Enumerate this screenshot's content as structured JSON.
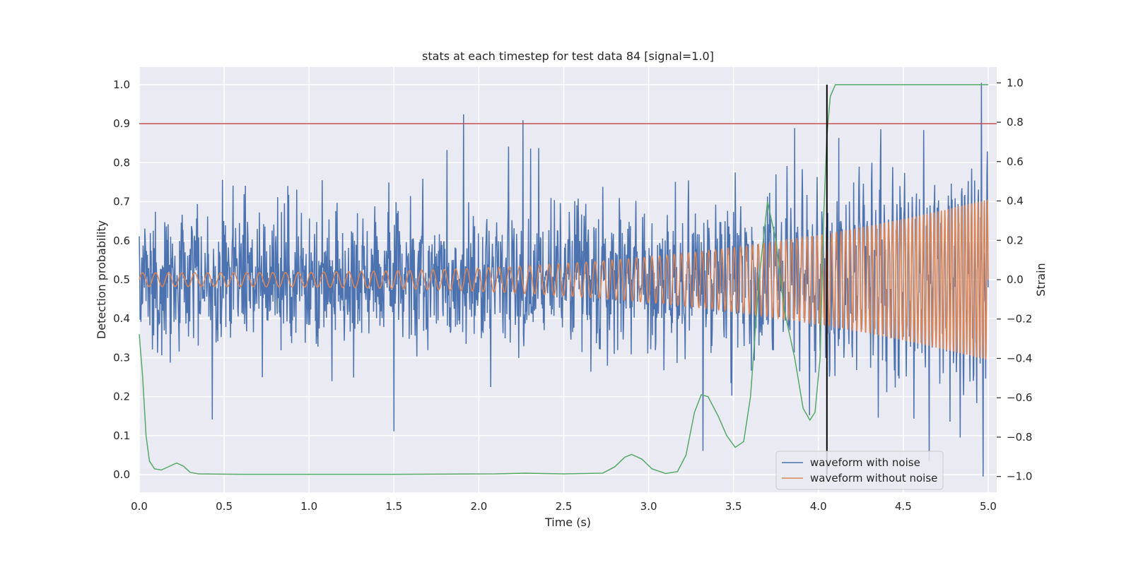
{
  "chart_data": {
    "type": "line",
    "title": "stats at each timestep for test data 84 [signal=1.0]",
    "xlabel": "Time (s)",
    "ylabel_left": "Detection probability",
    "ylabel_right": "Strain",
    "xlim": [
      0.0,
      5.05
    ],
    "ylim_left": [
      -0.045,
      1.045
    ],
    "ylim_right": [
      -1.08,
      1.08
    ],
    "x_ticks": [
      0.0,
      0.5,
      1.0,
      1.5,
      2.0,
      2.5,
      3.0,
      3.5,
      4.0,
      4.5,
      5.0
    ],
    "x_tick_labels": [
      "0.0",
      "0.5",
      "1.0",
      "1.5",
      "2.0",
      "2.5",
      "3.0",
      "3.5",
      "4.0",
      "4.5",
      "5.0"
    ],
    "y_left_ticks": [
      0.0,
      0.1,
      0.2,
      0.3,
      0.4,
      0.5,
      0.6,
      0.7,
      0.8,
      0.9,
      1.0
    ],
    "y_left_tick_labels": [
      "0.0",
      "0.1",
      "0.2",
      "0.3",
      "0.4",
      "0.5",
      "0.6",
      "0.7",
      "0.8",
      "0.9",
      "1.0"
    ],
    "y_right_ticks": [
      -1.0,
      -0.8,
      -0.6,
      -0.4,
      -0.2,
      0.0,
      0.2,
      0.4,
      0.6,
      0.8,
      1.0
    ],
    "y_right_tick_labels": [
      "−1.0",
      "−0.8",
      "−0.6",
      "−0.4",
      "−0.2",
      "0.0",
      "0.2",
      "0.4",
      "0.6",
      "0.8",
      "1.0"
    ],
    "grid": true,
    "legend_position": "lower-right",
    "threshold": {
      "axis": "left",
      "y": 0.9,
      "color": "#c44e52"
    },
    "detection_time": {
      "x": 4.05,
      "color": "#000000"
    },
    "series": [
      {
        "name": "waveform with noise",
        "axis": "right",
        "color": "#4c72b0",
        "kind": "noise",
        "approx_std": 0.17,
        "approx_range": [
          -1.0,
          1.0
        ],
        "notable_points": [
          [
            1.91,
            0.84
          ],
          [
            2.26,
            0.81
          ],
          [
            3.86,
            0.77
          ],
          [
            4.12,
            0.72
          ],
          [
            4.62,
            0.76
          ],
          [
            4.96,
            1.0
          ],
          [
            4.97,
            -1.0
          ],
          [
            0.43,
            -0.71
          ],
          [
            1.5,
            -0.77
          ],
          [
            3.32,
            -0.87
          ]
        ]
      },
      {
        "name": "waveform without noise",
        "axis": "right",
        "color": "#dd8452",
        "kind": "chirp",
        "amplitude_start": 0.035,
        "amplitude_end": 0.41,
        "frequency_start_hz": 13,
        "frequency_end_hz": 55
      },
      {
        "axis": "left",
        "color": "#55a868",
        "kind": "probability",
        "points": [
          [
            0.0,
            0.36
          ],
          [
            0.02,
            0.25
          ],
          [
            0.04,
            0.1
          ],
          [
            0.06,
            0.035
          ],
          [
            0.09,
            0.015
          ],
          [
            0.13,
            0.012
          ],
          [
            0.18,
            0.022
          ],
          [
            0.22,
            0.03
          ],
          [
            0.26,
            0.022
          ],
          [
            0.3,
            0.006
          ],
          [
            0.35,
            0.002
          ],
          [
            0.6,
            0.001
          ],
          [
            1.5,
            0.001
          ],
          [
            2.1,
            0.002
          ],
          [
            2.27,
            0.004
          ],
          [
            2.5,
            0.002
          ],
          [
            2.73,
            0.004
          ],
          [
            2.8,
            0.02
          ],
          [
            2.86,
            0.045
          ],
          [
            2.9,
            0.052
          ],
          [
            2.96,
            0.04
          ],
          [
            3.02,
            0.015
          ],
          [
            3.1,
            0.003
          ],
          [
            3.17,
            0.008
          ],
          [
            3.22,
            0.05
          ],
          [
            3.27,
            0.16
          ],
          [
            3.31,
            0.205
          ],
          [
            3.35,
            0.2
          ],
          [
            3.41,
            0.15
          ],
          [
            3.46,
            0.1
          ],
          [
            3.51,
            0.07
          ],
          [
            3.56,
            0.085
          ],
          [
            3.6,
            0.2
          ],
          [
            3.65,
            0.5
          ],
          [
            3.7,
            0.7
          ],
          [
            3.75,
            0.6
          ],
          [
            3.8,
            0.42
          ],
          [
            3.86,
            0.3
          ],
          [
            3.91,
            0.17
          ],
          [
            3.95,
            0.14
          ],
          [
            3.98,
            0.16
          ],
          [
            4.01,
            0.3
          ],
          [
            4.03,
            0.65
          ],
          [
            4.05,
            0.87
          ],
          [
            4.07,
            0.97
          ],
          [
            4.1,
            1.0
          ],
          [
            4.5,
            1.0
          ],
          [
            5.0,
            1.0
          ]
        ]
      }
    ]
  }
}
